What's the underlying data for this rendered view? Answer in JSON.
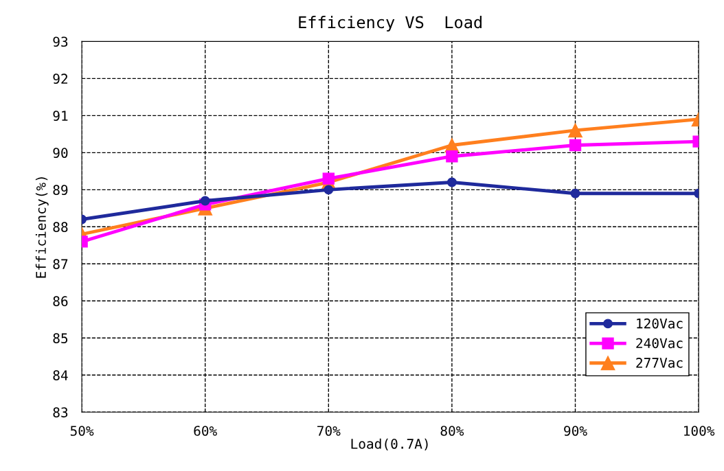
{
  "chart_data": {
    "type": "line",
    "title": "Efficiency VS  Load",
    "xlabel": "Load(0.7A)",
    "ylabel": "Efficiency(%)",
    "x": [
      50,
      60,
      70,
      80,
      90,
      100
    ],
    "series": [
      {
        "name": "120Vac",
        "color": "#1f2a9c",
        "marker": "circle",
        "values": [
          88.2,
          88.7,
          89.0,
          89.2,
          88.9,
          88.9
        ]
      },
      {
        "name": "240Vac",
        "color": "#ff00ff",
        "marker": "square",
        "values": [
          87.6,
          88.6,
          89.3,
          89.9,
          90.2,
          90.3
        ]
      },
      {
        "name": "277Vac",
        "color": "#ff7f1e",
        "marker": "triangle",
        "values": [
          87.8,
          88.5,
          89.2,
          90.2,
          90.6,
          90.9
        ]
      }
    ],
    "xlim": [
      50,
      100
    ],
    "xticks": [
      {
        "value": 50,
        "label": "50%"
      },
      {
        "value": 60,
        "label": "60%"
      },
      {
        "value": 70,
        "label": "70%"
      },
      {
        "value": 80,
        "label": "80%"
      },
      {
        "value": 90,
        "label": "90%"
      },
      {
        "value": 100,
        "label": "100%"
      }
    ],
    "ylim": [
      83,
      93
    ],
    "yticks": [
      83,
      84,
      85,
      86,
      87,
      88,
      89,
      90,
      91,
      92,
      93
    ],
    "grid": true,
    "legend": "bottom right",
    "line_style": "solid"
  }
}
